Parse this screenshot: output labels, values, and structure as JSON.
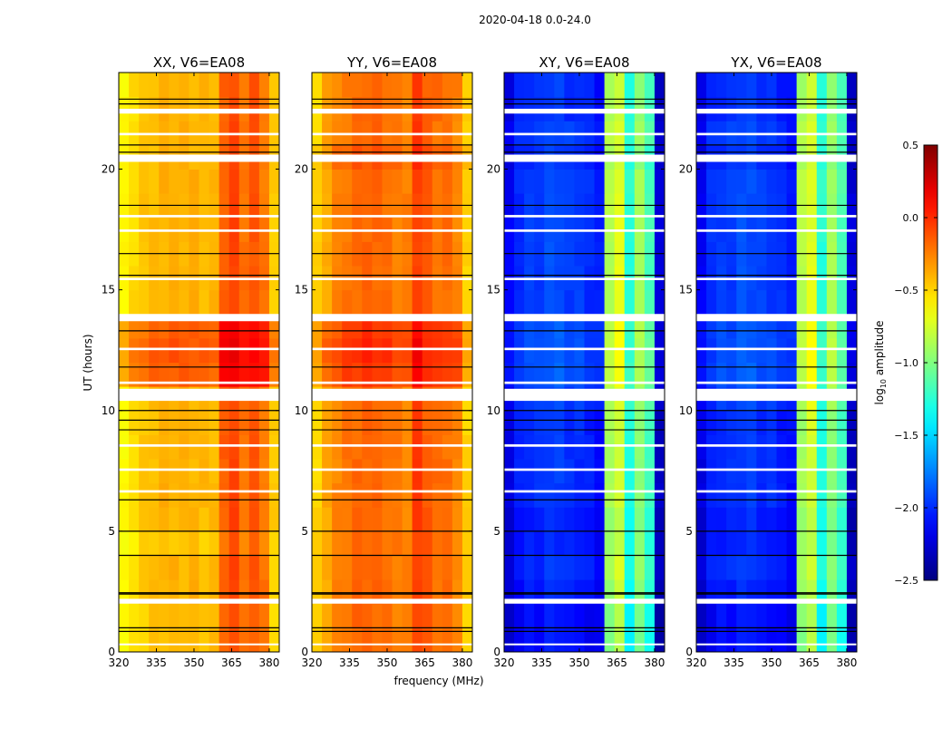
{
  "chart_data": {
    "type": "heatmap",
    "title": "2020-04-18 0.0-24.0",
    "xlabel": "frequency (MHz)",
    "ylabel": "UT (hours)",
    "xlim": [
      320,
      384
    ],
    "ylim": [
      0,
      24
    ],
    "xticks": [
      "320",
      "335",
      "350",
      "365",
      "380"
    ],
    "xtick_values": [
      320,
      335,
      350,
      365,
      380
    ],
    "yticks": [
      "0",
      "5",
      "10",
      "15",
      "20"
    ],
    "ytick_values": [
      0,
      5,
      10,
      15,
      20
    ],
    "colorbar": {
      "label_main": "log",
      "label_sub": "10",
      "label_rest": " amplitude",
      "range": [
        -2.5,
        0.5
      ],
      "colormap": "jet",
      "ticks": [
        "0.5",
        "0.0",
        "−0.5",
        "−1.0",
        "−1.5",
        "−2.0",
        "−2.5"
      ],
      "tick_values": [
        0.5,
        0.0,
        -0.5,
        -1.0,
        -1.5,
        -2.0,
        -2.5
      ]
    },
    "freq_bin_edges_mhz": [
      320,
      324,
      328,
      332,
      336,
      340,
      344,
      348,
      352,
      356,
      360,
      364,
      368,
      372,
      376,
      380,
      384
    ],
    "time_bin_hours": 1,
    "flagged_hours_white": [
      [
        22.3,
        22.5
      ],
      [
        21.4,
        21.5
      ],
      [
        20.3,
        20.6
      ],
      [
        18.0,
        18.1
      ],
      [
        17.4,
        17.5
      ],
      [
        15.4,
        15.5
      ],
      [
        13.7,
        14.0
      ],
      [
        12.5,
        12.6
      ],
      [
        11.1,
        11.2
      ],
      [
        10.4,
        10.9
      ],
      [
        8.5,
        8.6
      ],
      [
        7.5,
        7.6
      ],
      [
        6.6,
        6.7
      ],
      [
        2.0,
        2.2
      ],
      [
        0.3,
        0.35
      ]
    ],
    "flagged_hours_black": [
      22.9,
      22.7,
      21.0,
      20.7,
      18.5,
      16.5,
      15.6,
      13.3,
      11.8,
      10.0,
      9.6,
      9.2,
      6.3,
      5.0,
      4.0,
      2.4,
      2.45,
      1.0,
      0.85
    ],
    "panels": [
      {
        "title": "XX, V6=EA08",
        "freq_profile": [
          -0.62,
          -0.52,
          -0.46,
          -0.42,
          -0.4,
          -0.4,
          -0.4,
          -0.4,
          -0.42,
          -0.42,
          -0.15,
          -0.08,
          -0.2,
          -0.12,
          -0.22,
          -0.48
        ],
        "time_offset": [
          -0.02,
          -0.02,
          0,
          0,
          -0.05,
          0,
          0,
          0,
          0,
          0,
          0,
          0.25,
          0.28,
          0.25,
          0,
          0,
          0,
          0,
          0,
          0,
          0,
          0,
          0,
          0
        ]
      },
      {
        "title": "YY, V6=EA08",
        "freq_profile": [
          -0.5,
          -0.36,
          -0.27,
          -0.22,
          -0.18,
          -0.17,
          -0.18,
          -0.2,
          -0.24,
          -0.26,
          -0.05,
          -0.14,
          -0.2,
          -0.2,
          -0.26,
          -0.5
        ],
        "time_offset": [
          0,
          0,
          0,
          0,
          0,
          0,
          0,
          0,
          0,
          0,
          0,
          0.15,
          0.18,
          0.15,
          0,
          0,
          0,
          0,
          0,
          0,
          0.05,
          0,
          0,
          0
        ]
      },
      {
        "title": "XY, V6=EA08",
        "freq_profile": [
          -2.2,
          -2.05,
          -2.0,
          -2.0,
          -1.95,
          -1.95,
          -2.0,
          -2.0,
          -2.05,
          -2.1,
          -0.9,
          -0.75,
          -1.3,
          -0.95,
          -1.2,
          -2.3
        ],
        "time_offset": [
          -0.1,
          -0.1,
          -0.05,
          0,
          -0.05,
          -0.05,
          0,
          0,
          0,
          0,
          0.05,
          0.1,
          0.1,
          0.1,
          0.05,
          0.05,
          0.05,
          0.05,
          0.05,
          0.05,
          0,
          0.05,
          0,
          0
        ]
      },
      {
        "title": "YX, V6=EA08",
        "freq_profile": [
          -2.2,
          -2.05,
          -2.0,
          -2.0,
          -1.95,
          -1.95,
          -2.0,
          -2.0,
          -2.05,
          -2.1,
          -0.9,
          -0.75,
          -1.3,
          -0.95,
          -1.2,
          -2.3
        ],
        "time_offset": [
          -0.1,
          -0.1,
          -0.05,
          0,
          -0.05,
          -0.05,
          0,
          0,
          0,
          0,
          0.05,
          0.1,
          0.1,
          0.1,
          0.05,
          0.05,
          0.05,
          0.05,
          0.05,
          0.05,
          0,
          0.05,
          0,
          0
        ]
      }
    ]
  }
}
